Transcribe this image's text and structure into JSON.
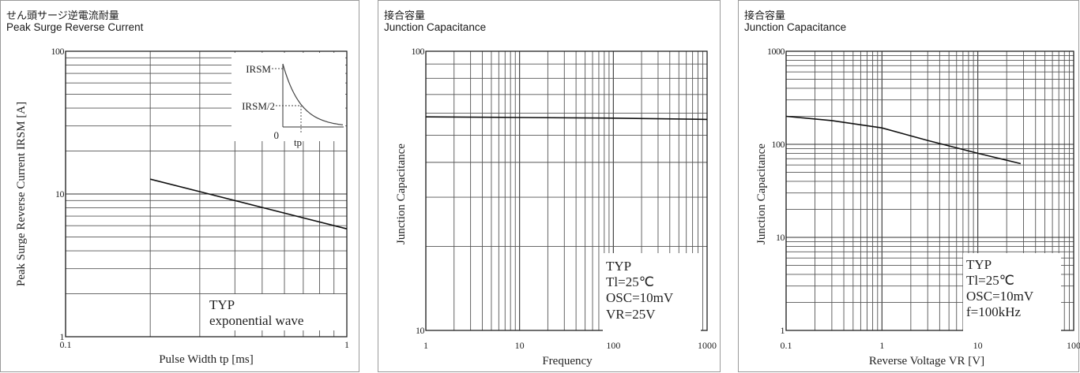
{
  "chart_data": [
    {
      "type": "line",
      "title_jp": "せん頭サージ逆電流耐量",
      "title": "Peak Surge Reverse Current",
      "xlabel": "Pulse Width tp [ms]",
      "ylabel": "Peak Surge Reverse Current IRSM [A]",
      "xscale": "log",
      "yscale": "log",
      "xlim": [
        0.1,
        1
      ],
      "ylim": [
        1,
        100
      ],
      "x_ticks": [
        {
          "v": 0.1,
          "label": "0.1"
        },
        {
          "v": 1,
          "label": "1"
        }
      ],
      "y_ticks": [
        {
          "v": 1,
          "label": "1"
        },
        {
          "v": 10,
          "label": "10"
        },
        {
          "v": 100,
          "label": "100"
        }
      ],
      "series": [
        {
          "x": [
            0.2,
            1.0
          ],
          "y": [
            12.7,
            5.7
          ]
        }
      ],
      "annotation": [
        "TYP",
        "exponential wave"
      ],
      "inset": {
        "labels": [
          "IRSM",
          "IRSM/2",
          "0",
          "tp"
        ]
      }
    },
    {
      "type": "line",
      "title_jp": "接合容量",
      "title": "Junction Capacitance",
      "xlabel": "Frequency",
      "ylabel": "Junction Capacitance",
      "xscale": "log",
      "yscale": "log",
      "xlim": [
        1,
        1000
      ],
      "ylim": [
        10,
        100
      ],
      "x_ticks": [
        {
          "v": 1,
          "label": "1"
        },
        {
          "v": 10,
          "label": "10"
        },
        {
          "v": 100,
          "label": "100"
        },
        {
          "v": 1000,
          "label": "1000"
        }
      ],
      "y_ticks": [
        {
          "v": 10,
          "label": "10"
        },
        {
          "v": 100,
          "label": "100"
        }
      ],
      "series": [
        {
          "x": [
            1,
            10,
            100,
            1000
          ],
          "y": [
            58.2,
            57.9,
            57.6,
            57.0
          ]
        }
      ],
      "annotation": [
        "TYP",
        "Tl=25℃",
        "OSC=10mV",
        "VR=25V"
      ]
    },
    {
      "type": "line",
      "title_jp": "接合容量",
      "title": "Junction Capacitance",
      "xlabel": "Reverse Voltage VR [V]",
      "ylabel": "Junction Capacitance",
      "xscale": "log",
      "yscale": "log",
      "xlim": [
        0.1,
        100
      ],
      "ylim": [
        1,
        1000
      ],
      "x_ticks": [
        {
          "v": 0.1,
          "label": "0.1"
        },
        {
          "v": 1,
          "label": "1"
        },
        {
          "v": 10,
          "label": "10"
        },
        {
          "v": 100,
          "label": "100"
        }
      ],
      "y_ticks": [
        {
          "v": 1,
          "label": "1"
        },
        {
          "v": 10,
          "label": "10"
        },
        {
          "v": 100,
          "label": "100"
        },
        {
          "v": 1000,
          "label": "1000"
        }
      ],
      "series": [
        {
          "x": [
            0.1,
            0.3,
            1,
            3,
            10,
            28
          ],
          "y": [
            200,
            180,
            150,
            110,
            80,
            62
          ]
        }
      ],
      "annotation": [
        "TYP",
        "Tl=25℃",
        "OSC=10mV",
        "f=100kHz"
      ]
    }
  ]
}
